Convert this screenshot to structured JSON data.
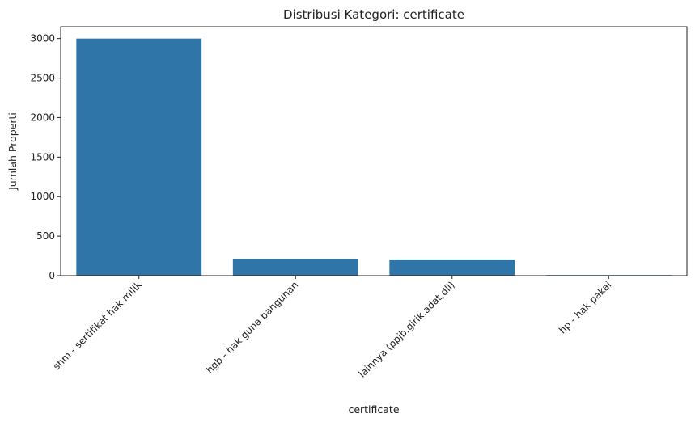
{
  "chart_data": {
    "type": "bar",
    "title": "Distribusi Kategori: certificate",
    "xlabel": "certificate",
    "ylabel": "Jumlah Properti",
    "categories": [
      "shm - sertifikat hak milik",
      "hgb - hak guna bangunan",
      "lainnya (ppjb,girik,adat,dll)",
      "hp - hak pakai"
    ],
    "values": [
      3000,
      215,
      205,
      8
    ],
    "ylim": [
      0,
      3150
    ],
    "yticks": [
      0,
      500,
      1000,
      1500,
      2000,
      2500,
      3000
    ],
    "grid": false,
    "legend": "none",
    "bar_color": "#2f75a8"
  }
}
